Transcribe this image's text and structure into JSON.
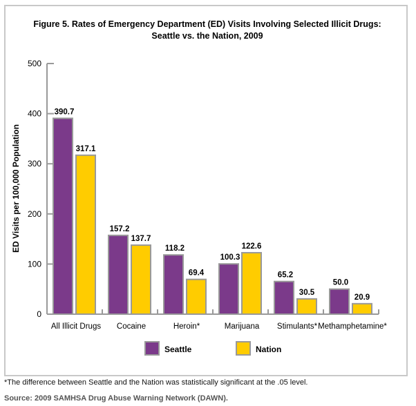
{
  "chart_data": {
    "type": "bar",
    "title": "Figure 5. Rates of Emergency Department (ED) Visits Involving Selected Illicit Drugs:",
    "subtitle": "Seattle vs. the Nation, 2009",
    "xlabel": "",
    "ylabel": "ED Visits per 100,000 Population",
    "ylim": [
      0,
      500
    ],
    "yticks": [
      "0",
      "100",
      "200",
      "300",
      "400",
      "500"
    ],
    "grid": false,
    "legend": "bottom",
    "categories": [
      "All Illicit Drugs",
      "Cocaine",
      "Heroin*",
      "Marijuana",
      "Stimulants*",
      "Methamphetamine*"
    ],
    "series": [
      {
        "name": "Seattle",
        "color": "#7b3a8a",
        "values": [
          390.7,
          157.2,
          118.2,
          100.3,
          65.2,
          50.0
        ],
        "labels": [
          "390.7",
          "157.2",
          "118.2",
          "100.3",
          "65.2",
          "50.0"
        ]
      },
      {
        "name": "Nation",
        "color": "#ffcc00",
        "values": [
          317.1,
          137.7,
          69.4,
          122.6,
          30.5,
          20.9
        ],
        "labels": [
          "317.1",
          "137.7",
          "69.4",
          "122.6",
          "30.5",
          "20.9"
        ]
      }
    ]
  },
  "footnote": "*The difference between Seattle and the Nation was statistically significant at the .05 level.",
  "source": "Source: 2009 SAMHSA Drug Abuse Warning Network (DAWN)."
}
